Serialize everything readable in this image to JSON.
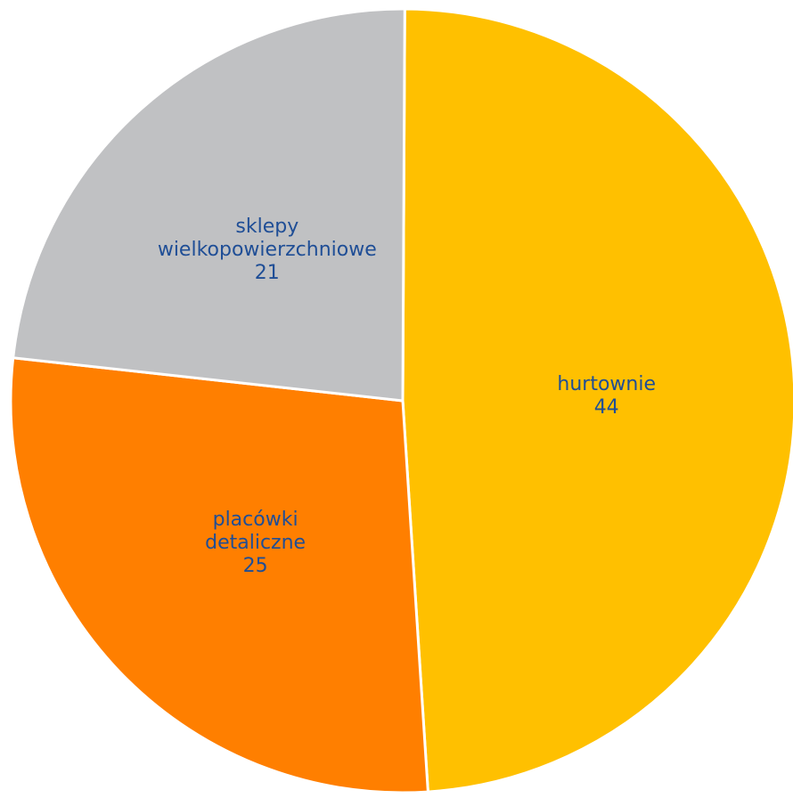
{
  "chart_data": {
    "type": "pie",
    "title": "",
    "slices": [
      {
        "label_lines": [
          "hurtownie"
        ],
        "value": 44,
        "value_label": "44",
        "color": "#ffc000"
      },
      {
        "label_lines": [
          "placówki",
          "detaliczne"
        ],
        "value": 25,
        "value_label": "25",
        "color": "#ff7f00"
      },
      {
        "label_lines": [
          "sklepy",
          "wielkopowierzchniowe"
        ],
        "value": 21,
        "value_label": "21",
        "color": "#c0c1c3"
      }
    ],
    "start_angle": "12 o'clock",
    "direction": "clockwise",
    "label_color": "#1f4e96",
    "border_color": "#ffffff"
  }
}
